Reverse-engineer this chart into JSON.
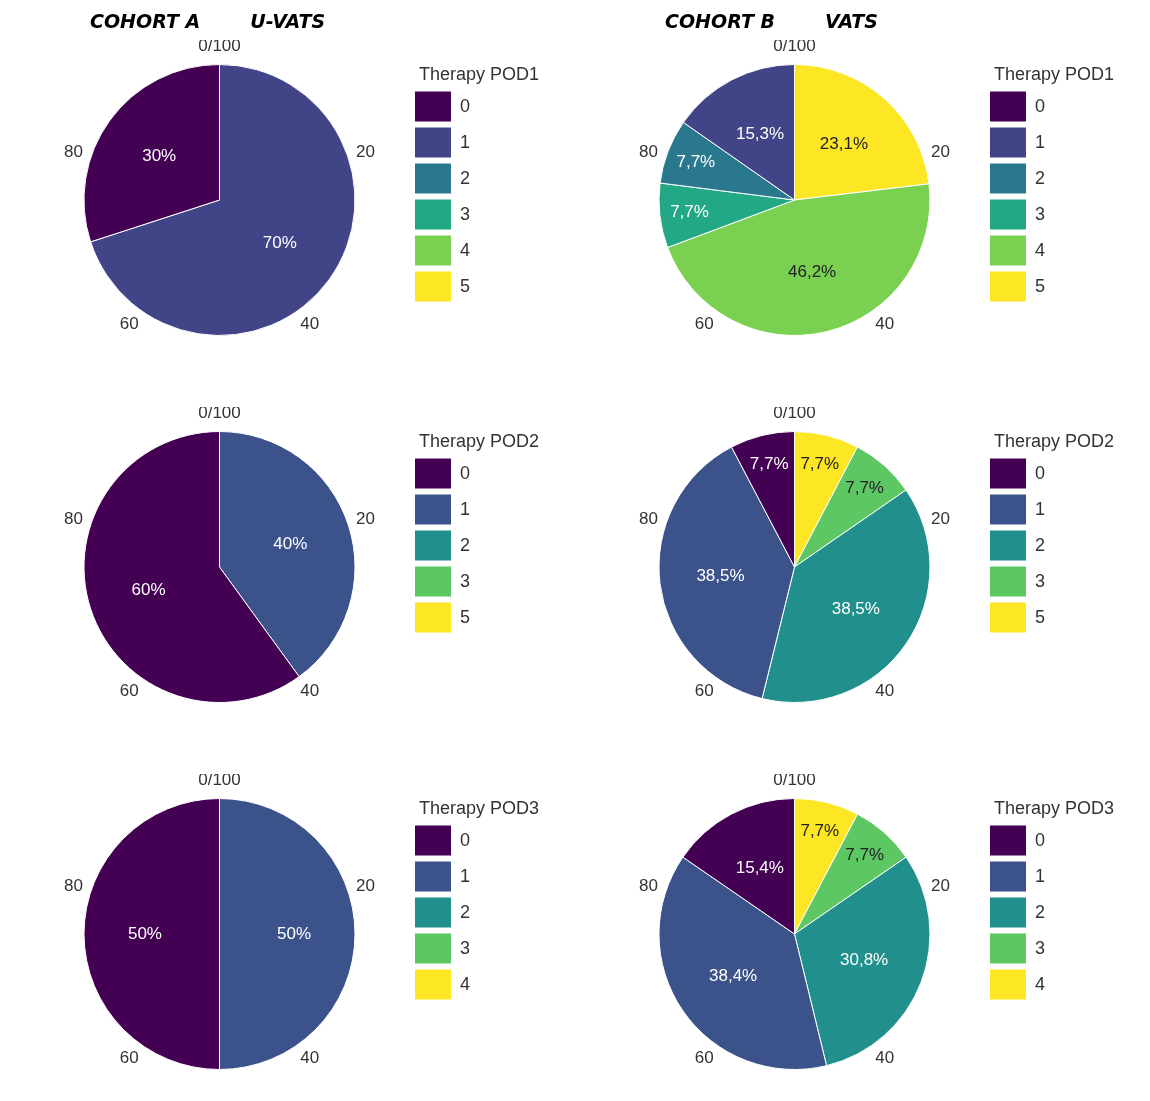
{
  "chart_data": [
    {
      "type": "pie",
      "title": "COHORT A",
      "subtitle": "U-VATS",
      "legend_title": "Therapy POD1",
      "legend": "right",
      "annotations": [
        "0/100",
        "20",
        "40",
        "60",
        "80"
      ],
      "categories": [
        "0",
        "1",
        "2",
        "3",
        "4",
        "5"
      ],
      "values": [
        30,
        70,
        0,
        0,
        0,
        0
      ],
      "value_labels": [
        "30%",
        "70%",
        null,
        null,
        null,
        null
      ],
      "colors": [
        "#440154",
        "#414487",
        "#2a788e",
        "#22a884",
        "#7ad151",
        "#fde725"
      ]
    },
    {
      "type": "pie",
      "title": "COHORT B",
      "subtitle": "VATS",
      "legend_title": "Therapy POD1",
      "legend": "right",
      "annotations": [
        "0/100",
        "20",
        "40",
        "60",
        "80"
      ],
      "categories": [
        "0",
        "1",
        "2",
        "3",
        "4",
        "5"
      ],
      "values": [
        0,
        15.3,
        7.7,
        7.7,
        46.2,
        23.1
      ],
      "value_labels": [
        null,
        "15,3%",
        "7,7%",
        "7,7%",
        "46,2%",
        "23,1%"
      ],
      "colors": [
        "#440154",
        "#414487",
        "#2a788e",
        "#22a884",
        "#7ad151",
        "#fde725"
      ]
    },
    {
      "type": "pie",
      "legend_title": "Therapy POD2",
      "legend": "right",
      "annotations": [
        "0/100",
        "20",
        "40",
        "60",
        "80"
      ],
      "categories": [
        "0",
        "1",
        "2",
        "3",
        "5"
      ],
      "values": [
        60,
        40,
        0,
        0,
        0
      ],
      "value_labels": [
        "60%",
        "40%",
        null,
        null,
        null
      ],
      "colors": [
        "#440154",
        "#3b528b",
        "#21908c",
        "#5dc863",
        "#fde725"
      ]
    },
    {
      "type": "pie",
      "legend_title": "Therapy POD2",
      "legend": "right",
      "annotations": [
        "0/100",
        "20",
        "40",
        "60",
        "80"
      ],
      "categories": [
        "0",
        "1",
        "2",
        "3",
        "5"
      ],
      "values": [
        7.7,
        38.5,
        38.5,
        7.7,
        7.7
      ],
      "value_labels": [
        "7,7%",
        "38,5%",
        "38,5%",
        "7,7%",
        "7,7%"
      ],
      "colors": [
        "#440154",
        "#3b528b",
        "#21908c",
        "#5dc863",
        "#fde725"
      ]
    },
    {
      "type": "pie",
      "legend_title": "Therapy POD3",
      "legend": "right",
      "annotations": [
        "0/100",
        "20",
        "40",
        "60",
        "80"
      ],
      "categories": [
        "0",
        "1",
        "2",
        "3",
        "4"
      ],
      "values": [
        50,
        50,
        0,
        0,
        0
      ],
      "value_labels": [
        "50%",
        "50%",
        null,
        null,
        null
      ],
      "colors": [
        "#440154",
        "#3b528b",
        "#21908c",
        "#5dc863",
        "#fde725"
      ]
    },
    {
      "type": "pie",
      "legend_title": "Therapy POD3",
      "legend": "right",
      "annotations": [
        "0/100",
        "20",
        "40",
        "60",
        "80"
      ],
      "categories": [
        "0",
        "1",
        "2",
        "3",
        "4"
      ],
      "values": [
        15.4,
        38.4,
        30.8,
        7.7,
        7.7
      ],
      "value_labels": [
        "15,4%",
        "38,4%",
        "30,8%",
        "7,7%",
        "7,7%"
      ],
      "colors": [
        "#440154",
        "#3b528b",
        "#21908c",
        "#5dc863",
        "#fde725"
      ]
    }
  ]
}
